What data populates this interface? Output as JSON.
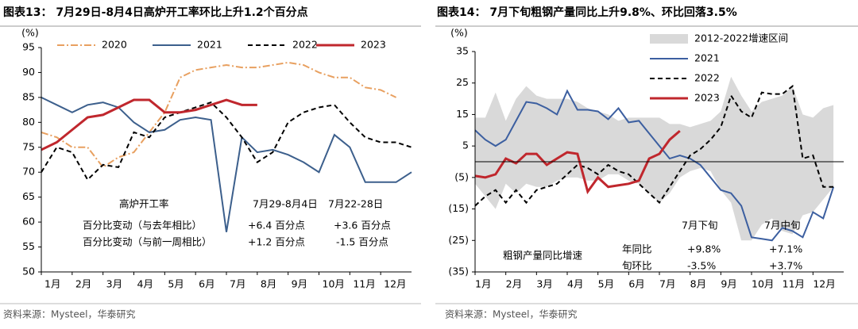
{
  "chart_data": [
    {
      "type": "line",
      "title": "图表13： 7月29日-8月4日高炉开工率环比上升1.2个百分点",
      "y_unit": "(%)",
      "source": "资料来源：Mysteel，华泰研究",
      "xlim": [
        1,
        13
      ],
      "xticks": [
        {
          "value": 1,
          "label": "1月"
        },
        {
          "value": 2,
          "label": "2月"
        },
        {
          "value": 3,
          "label": "3月"
        },
        {
          "value": 4,
          "label": "4月"
        },
        {
          "value": 5,
          "label": "5月"
        },
        {
          "value": 6,
          "label": "6月"
        },
        {
          "value": 7,
          "label": "7月"
        },
        {
          "value": 8,
          "label": "8月"
        },
        {
          "value": 9,
          "label": "9月"
        },
        {
          "value": 10,
          "label": "10月"
        },
        {
          "value": 11,
          "label": "11月"
        },
        {
          "value": 12,
          "label": "12月"
        }
      ],
      "ylim": [
        50,
        95
      ],
      "yticks": [
        50,
        55,
        60,
        65,
        70,
        75,
        80,
        85,
        90,
        95
      ],
      "legend": "top",
      "x": [
        1,
        1.5,
        2,
        2.5,
        3,
        3.5,
        4,
        4.5,
        5,
        5.5,
        6,
        6.5,
        7,
        7.5,
        8,
        8.5,
        9,
        9.5,
        10,
        10.5,
        11,
        11.5,
        12,
        12.5,
        13
      ],
      "series": [
        {
          "name": "2020",
          "color": "#e8a060",
          "line_style": "dashdot",
          "values": [
            78,
            77,
            75,
            75,
            71,
            73,
            74,
            78,
            82,
            89,
            90.5,
            91,
            91.5,
            91,
            91,
            91.5,
            92,
            91.5,
            90,
            89,
            89,
            87,
            86.5,
            85,
            null
          ]
        },
        {
          "name": "2021",
          "color": "#3c5f8c",
          "line_style": "solid",
          "values": [
            85,
            83.5,
            82,
            83.5,
            84,
            83,
            80,
            78,
            78.5,
            80.5,
            81,
            80.5,
            58,
            77,
            74,
            74.5,
            73.5,
            72,
            70,
            77.5,
            75,
            68,
            68,
            68,
            70
          ]
        },
        {
          "name": "2022",
          "color": "#000000",
          "line_style": "dashed",
          "values": [
            70,
            75,
            74,
            68.5,
            71.5,
            71,
            78,
            77,
            81,
            82,
            83,
            84,
            81,
            77,
            72,
            74,
            80,
            82,
            83,
            83.5,
            80,
            77,
            76,
            76,
            75
          ]
        },
        {
          "name": "2023",
          "color": "#c0272d",
          "line_style": "solid",
          "values": [
            74.5,
            76,
            78.5,
            81,
            81.5,
            83,
            84.5,
            84.5,
            82,
            82,
            82.5,
            83.5,
            84.5,
            83.5,
            83.5,
            null,
            null,
            null,
            null,
            null,
            null,
            null,
            null,
            null,
            null
          ]
        }
      ],
      "annotations": [
        "高炉开工率",
        "7月29-8月4日",
        "7月22-28日",
        "百分比变动（与去年相比）",
        "+6.4 百分点",
        "+3.6 百分点",
        "百分比变动（与前一周相比）",
        "+1.2 百分点",
        "-1.5 百分点"
      ]
    },
    {
      "type": "line",
      "title": "图表14： 7月下旬粗钢产量同比上升9.8%、环比回落3.5%",
      "y_unit": "(%)",
      "source": "资料来源：Mysteel，华泰研究",
      "xlim": [
        1,
        37
      ],
      "xticks": [
        {
          "value": 1,
          "label": "1月"
        },
        {
          "value": 4,
          "label": "2月"
        },
        {
          "value": 7,
          "label": "3月"
        },
        {
          "value": 10,
          "label": "4月"
        },
        {
          "value": 13,
          "label": "5月"
        },
        {
          "value": 16,
          "label": "6月"
        },
        {
          "value": 19,
          "label": "7月"
        },
        {
          "value": 22,
          "label": "8月"
        },
        {
          "value": 25,
          "label": "9月"
        },
        {
          "value": 28,
          "label": "10月"
        },
        {
          "value": 31,
          "label": "11月"
        },
        {
          "value": 34,
          "label": "12月"
        }
      ],
      "ylim": [
        -35,
        35
      ],
      "yticks": [
        {
          "value": -35,
          "label": "(35)"
        },
        {
          "value": -25,
          "label": "(25)"
        },
        {
          "value": -15,
          "label": "(15)"
        },
        {
          "value": -5,
          "label": "(5)"
        },
        5,
        15,
        25,
        35
      ],
      "legend": "top-right",
      "x": [
        1,
        2,
        3,
        4,
        5,
        6,
        7,
        8,
        9,
        10,
        11,
        12,
        13,
        14,
        15,
        16,
        17,
        18,
        19,
        20,
        21,
        22,
        23,
        24,
        25,
        26,
        27,
        28,
        29,
        30,
        31,
        32,
        33,
        34,
        35,
        36
      ],
      "series": [
        {
          "name": "2012-2022增速区间",
          "color": "#d9d9d9",
          "kind": "range",
          "upper": [
            14,
            14,
            22,
            13,
            20,
            24,
            21,
            20,
            20,
            20,
            19,
            17,
            16,
            15,
            13,
            14,
            14,
            14,
            14,
            12,
            12,
            11,
            12,
            13,
            16,
            27,
            21,
            16,
            19,
            20,
            21,
            24,
            15,
            14,
            17,
            18
          ],
          "lower": [
            -7,
            -11,
            -15,
            -7,
            -10,
            -7,
            -8,
            -8,
            -6,
            -5,
            -5,
            -6,
            -6,
            -4,
            -4,
            -6,
            -7,
            -10,
            -13,
            -10,
            -5,
            -3,
            -2,
            -3,
            -9,
            -13,
            -25,
            -25,
            -20,
            -18,
            -22,
            -23,
            -17,
            -16,
            -12,
            -8
          ]
        },
        {
          "name": "2021",
          "color": "#3c5fa0",
          "line_style": "solid",
          "values": [
            10,
            7,
            5,
            7,
            13,
            19,
            18.5,
            17,
            15,
            22.5,
            16.5,
            16.5,
            16,
            13.5,
            17,
            12.5,
            13,
            9,
            5,
            1,
            2,
            1,
            -1,
            -5,
            -9,
            -10,
            -14,
            -24,
            -24.5,
            -25,
            -21,
            -22,
            -24,
            -16,
            -18,
            -8
          ]
        },
        {
          "name": "2022",
          "color": "#000000",
          "line_style": "dashed",
          "values": [
            -14,
            -11,
            -9,
            -13,
            -9,
            -13,
            -9,
            -8,
            -7,
            -4,
            -1,
            -2,
            -4,
            -1,
            -3,
            -4,
            -7,
            -10,
            -13,
            -8,
            -3,
            2,
            4,
            7,
            11,
            21,
            16,
            14,
            22,
            21.5,
            21.5,
            24,
            1,
            2,
            -8,
            -8
          ]
        },
        {
          "name": "2023",
          "color": "#c0272d",
          "line_style": "solid",
          "values": [
            -4.5,
            -5,
            -4,
            1,
            -0.5,
            2.5,
            2.5,
            -1,
            1,
            3,
            2.5,
            -9.5,
            -5,
            -8,
            -7.5,
            -7,
            -6,
            1,
            2.5,
            7,
            9.8,
            null,
            null,
            null,
            null,
            null,
            null,
            null,
            null,
            null,
            null,
            null,
            null,
            null,
            null,
            null
          ]
        }
      ],
      "annotations": [
        "7月下旬",
        "7月中旬",
        "粗钢产量同比增速",
        "年同比",
        "旬环比",
        "+9.8%",
        "-3.5%",
        "+7.1%",
        "+3.7%"
      ]
    }
  ]
}
